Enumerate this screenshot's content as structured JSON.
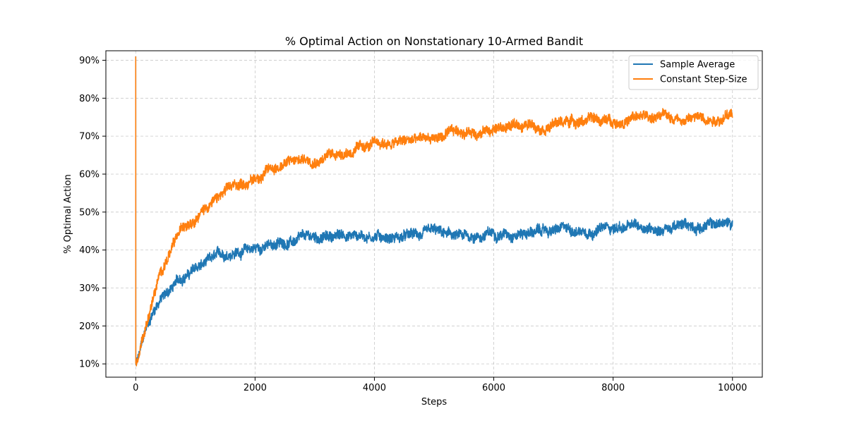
{
  "chart_data": {
    "type": "line",
    "title": "% Optimal Action on Nonstationary 10-Armed Bandit",
    "xlabel": "Steps",
    "ylabel": "% Optimal Action",
    "xlim": [
      -500,
      10500
    ],
    "ylim": [
      0.065,
      0.925
    ],
    "x_ticks": [
      0,
      2000,
      4000,
      6000,
      8000,
      10000
    ],
    "x_tick_labels": [
      "0",
      "2000",
      "4000",
      "6000",
      "8000",
      "10000"
    ],
    "y_ticks": [
      0.1,
      0.2,
      0.3,
      0.4,
      0.5,
      0.6,
      0.7,
      0.8,
      0.9
    ],
    "y_tick_labels": [
      "10%",
      "20%",
      "30%",
      "40%",
      "50%",
      "60%",
      "70%",
      "80%",
      "90%"
    ],
    "grid": true,
    "legend_position": "top-right",
    "n_steps": 10000,
    "series": [
      {
        "name": "Sample Average",
        "color": "#1f77b4",
        "noise": 0.012,
        "start_spike": 0.91,
        "points": [
          [
            0,
            0.1
          ],
          [
            50,
            0.115
          ],
          [
            100,
            0.15
          ],
          [
            200,
            0.2
          ],
          [
            300,
            0.24
          ],
          [
            400,
            0.27
          ],
          [
            500,
            0.285
          ],
          [
            600,
            0.3
          ],
          [
            700,
            0.315
          ],
          [
            800,
            0.33
          ],
          [
            900,
            0.34
          ],
          [
            1000,
            0.35
          ],
          [
            1200,
            0.365
          ],
          [
            1400,
            0.38
          ],
          [
            1600,
            0.395
          ],
          [
            1800,
            0.4
          ],
          [
            2000,
            0.405
          ],
          [
            2200,
            0.41
          ],
          [
            2500,
            0.42
          ],
          [
            3000,
            0.43
          ],
          [
            3500,
            0.44
          ],
          [
            4000,
            0.44
          ],
          [
            4500,
            0.435
          ],
          [
            5000,
            0.44
          ],
          [
            5500,
            0.43
          ],
          [
            6000,
            0.445
          ],
          [
            6500,
            0.45
          ],
          [
            7000,
            0.45
          ],
          [
            7500,
            0.455
          ],
          [
            8000,
            0.46
          ],
          [
            8500,
            0.46
          ],
          [
            9000,
            0.46
          ],
          [
            9500,
            0.465
          ],
          [
            10000,
            0.47
          ]
        ]
      },
      {
        "name": "Constant Step-Size",
        "color": "#ff7f0e",
        "noise": 0.012,
        "start_spike": 0.91,
        "points": [
          [
            0,
            0.1
          ],
          [
            50,
            0.12
          ],
          [
            100,
            0.16
          ],
          [
            200,
            0.22
          ],
          [
            300,
            0.28
          ],
          [
            400,
            0.33
          ],
          [
            500,
            0.37
          ],
          [
            600,
            0.4
          ],
          [
            700,
            0.43
          ],
          [
            800,
            0.46
          ],
          [
            900,
            0.48
          ],
          [
            1000,
            0.495
          ],
          [
            1200,
            0.52
          ],
          [
            1400,
            0.54
          ],
          [
            1600,
            0.56
          ],
          [
            1800,
            0.575
          ],
          [
            2000,
            0.59
          ],
          [
            2200,
            0.61
          ],
          [
            2500,
            0.63
          ],
          [
            3000,
            0.645
          ],
          [
            3500,
            0.66
          ],
          [
            4000,
            0.675
          ],
          [
            4500,
            0.685
          ],
          [
            5000,
            0.695
          ],
          [
            5500,
            0.71
          ],
          [
            6000,
            0.72
          ],
          [
            6500,
            0.73
          ],
          [
            7000,
            0.735
          ],
          [
            7500,
            0.745
          ],
          [
            8000,
            0.74
          ],
          [
            8500,
            0.75
          ],
          [
            9000,
            0.75
          ],
          [
            9500,
            0.75
          ],
          [
            10000,
            0.755
          ]
        ]
      }
    ]
  }
}
